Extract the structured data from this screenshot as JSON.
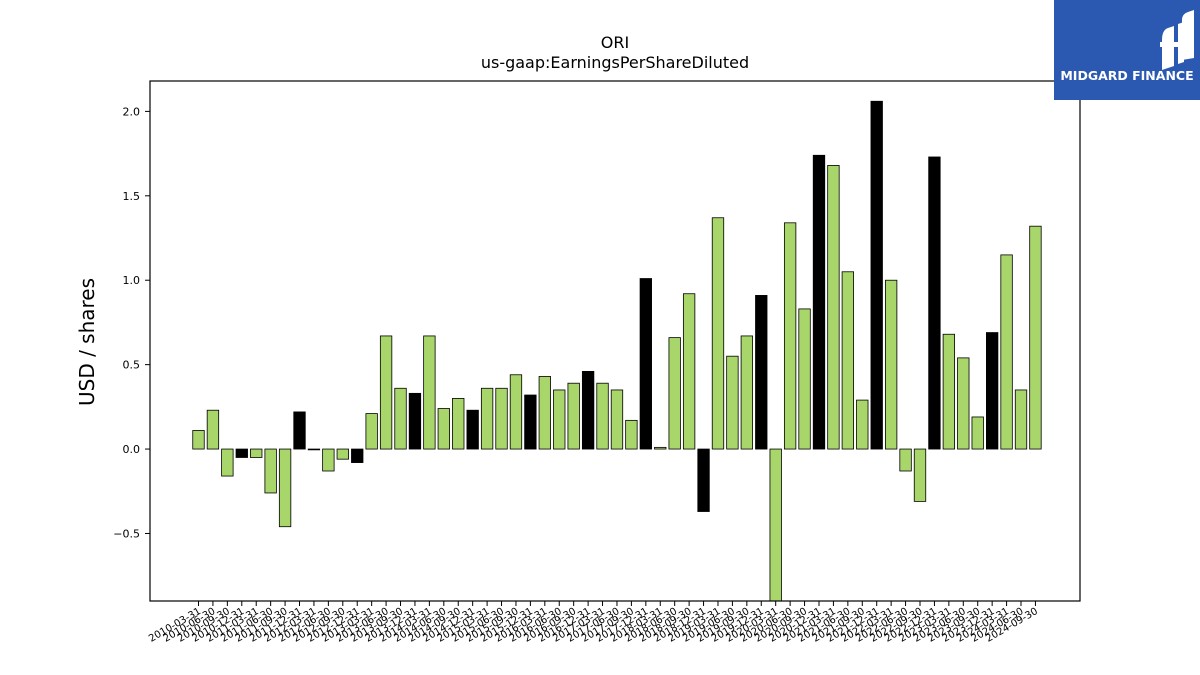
{
  "brand": {
    "name": "MIDGARD FINANCE",
    "background": "#2b58b0"
  },
  "chart_data": {
    "type": "bar",
    "title": "ORI",
    "subtitle": "us-gaap:EarningsPerShareDiluted",
    "xlabel": "",
    "ylabel": "USD / shares",
    "ylim": [
      -0.9,
      2.18
    ],
    "yticks": [
      -0.5,
      0.0,
      0.5,
      1.0,
      1.5,
      2.0
    ],
    "ytick_labels": [
      "−0.5",
      "0.0",
      "0.5",
      "1.0",
      "1.5",
      "2.0"
    ],
    "grid": false,
    "legend": "none",
    "colors": {
      "quarter": "#a8d66a",
      "annual": "#000000",
      "edge": "#000000"
    },
    "categories": [
      "2010-03-31",
      "2010-06-30",
      "2010-09-30",
      "2010-12-31",
      "2011-03-31",
      "2011-06-30",
      "2011-09-30",
      "2011-12-31",
      "2012-03-31",
      "2012-06-30",
      "2012-09-30",
      "2012-12-31",
      "2013-03-31",
      "2013-06-30",
      "2013-09-30",
      "2013-12-31",
      "2014-03-31",
      "2014-06-30",
      "2014-09-30",
      "2014-12-31",
      "2015-03-31",
      "2015-06-30",
      "2015-09-30",
      "2015-12-31",
      "2016-03-31",
      "2016-06-30",
      "2016-09-30",
      "2016-12-31",
      "2017-03-31",
      "2017-06-30",
      "2017-09-30",
      "2017-12-31",
      "2018-03-31",
      "2018-06-30",
      "2018-09-30",
      "2018-12-31",
      "2019-03-31",
      "2019-06-30",
      "2019-09-30",
      "2019-12-31",
      "2020-03-31",
      "2020-06-30",
      "2020-09-30",
      "2020-12-31",
      "2021-03-31",
      "2021-06-30",
      "2021-09-30",
      "2021-12-31",
      "2022-03-31",
      "2022-06-30",
      "2022-09-30",
      "2022-12-31",
      "2023-03-31",
      "2023-06-30",
      "2023-09-30",
      "2023-12-31",
      "2024-03-31",
      "2024-06-30",
      "2024-09-30"
    ],
    "tick_labels": [
      "2010-03-31",
      "2010-06-30",
      "2010-09-30",
      "2010-12-31",
      "2011-03-31",
      "2011-06-30",
      "2011-09-30",
      "2011-12-31",
      "2012-03-31",
      "2012-06-30",
      "2012-09-30",
      "2012-12-31",
      "2013-03-31",
      "2013-06-30",
      "2013-09-30",
      "2013-12-31",
      "2014-03-31",
      "2014-06-30",
      "2014-09-30",
      "2014-12-31",
      "2015-03-31",
      "2015-06-30",
      "2015-09-30",
      "2015-12-31",
      "2016-03-31",
      "2016-06-30",
      "2016-09-30",
      "2016-12-31",
      "2017-03-31",
      "2017-06-30",
      "2017-09-30",
      "2017-12-31",
      "2018-03-31",
      "2018-06-30",
      "2018-09-30",
      "2018-12-31",
      "2019-03-31",
      "2019-06-30",
      "2019-09-30",
      "2019-12-31",
      "2020-03-31",
      "2020-06-30",
      "2020-09-30",
      "2020-12-31",
      "2021-03-31",
      "2021-06-30",
      "2021-09-30",
      "2021-12-31",
      "2022-03-31",
      "2022-06-30",
      "2022-09-30",
      "2022-12-31",
      "2023-03-31",
      "2023-06-30",
      "2023-09-30",
      "2023-12-31",
      "2024-03-31",
      "2024-06-30",
      "2024-09-30"
    ],
    "values": [
      0.11,
      0.23,
      -0.16,
      -0.05,
      -0.05,
      -0.26,
      -0.46,
      0.22,
      0.0,
      -0.13,
      -0.06,
      -0.08,
      0.21,
      0.67,
      0.36,
      0.33,
      0.67,
      0.24,
      0.3,
      0.23,
      0.36,
      0.36,
      0.44,
      0.32,
      0.43,
      0.35,
      0.39,
      0.46,
      0.39,
      0.35,
      0.17,
      1.01,
      0.01,
      0.66,
      0.92,
      -0.37,
      1.37,
      0.55,
      0.67,
      0.91,
      -0.9,
      1.34,
      0.83,
      1.74,
      1.68,
      1.05,
      0.29,
      2.06,
      1.0,
      -0.13,
      -0.31,
      1.73,
      0.68,
      0.54,
      0.19,
      0.69,
      1.15,
      0.35,
      1.32
    ],
    "bar_kind": [
      "quarter",
      "quarter",
      "quarter",
      "annual",
      "quarter",
      "quarter",
      "quarter",
      "annual",
      "quarter",
      "quarter",
      "quarter",
      "annual",
      "quarter",
      "quarter",
      "quarter",
      "annual",
      "quarter",
      "quarter",
      "quarter",
      "annual",
      "quarter",
      "quarter",
      "quarter",
      "annual",
      "quarter",
      "quarter",
      "quarter",
      "annual",
      "quarter",
      "quarter",
      "quarter",
      "annual",
      "quarter",
      "quarter",
      "quarter",
      "annual",
      "quarter",
      "quarter",
      "quarter",
      "annual",
      "quarter",
      "quarter",
      "quarter",
      "annual",
      "quarter",
      "quarter",
      "quarter",
      "annual",
      "quarter",
      "quarter",
      "quarter",
      "annual",
      "quarter",
      "quarter",
      "quarter",
      "annual",
      "quarter",
      "quarter",
      "quarter"
    ]
  }
}
